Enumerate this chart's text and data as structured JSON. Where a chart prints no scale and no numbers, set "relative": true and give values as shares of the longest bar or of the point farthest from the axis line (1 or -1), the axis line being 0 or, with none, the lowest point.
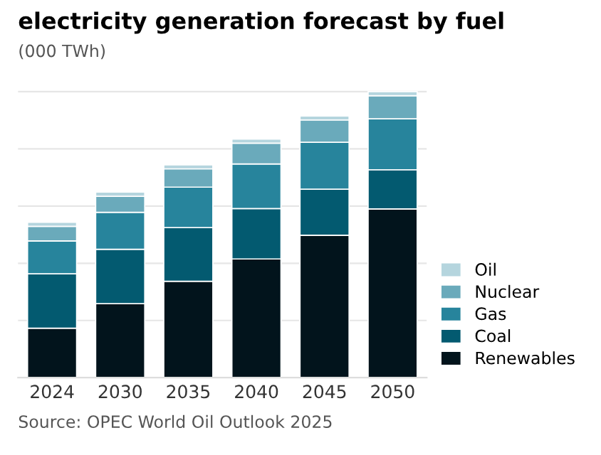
{
  "chart_data": {
    "type": "bar",
    "title": "electricity generation forecast by fuel",
    "subtitle": "(000 TWh)",
    "categories": [
      "2024",
      "2030",
      "2035",
      "2040",
      "2045",
      "2050"
    ],
    "stacked": true,
    "relative": true,
    "grid": "y",
    "legend": "right",
    "series": [
      {
        "name": "Renewables",
        "color": "#02141c",
        "values": [
          0.173,
          0.259,
          0.337,
          0.415,
          0.498,
          0.59
        ]
      },
      {
        "name": "Coal",
        "color": "#035a70",
        "values": [
          0.19,
          0.19,
          0.188,
          0.176,
          0.161,
          0.137
        ]
      },
      {
        "name": "Gas",
        "color": "#27849c",
        "values": [
          0.115,
          0.129,
          0.141,
          0.156,
          0.164,
          0.178
        ]
      },
      {
        "name": "Nuclear",
        "color": "#6aaabb",
        "values": [
          0.051,
          0.056,
          0.064,
          0.073,
          0.078,
          0.081
        ]
      },
      {
        "name": "Oil",
        "color": "#b5d5de",
        "values": [
          0.014,
          0.015,
          0.014,
          0.014,
          0.014,
          0.014
        ]
      }
    ],
    "annotations": [
      "Source: OPEC World Oil Outlook 2025"
    ]
  }
}
